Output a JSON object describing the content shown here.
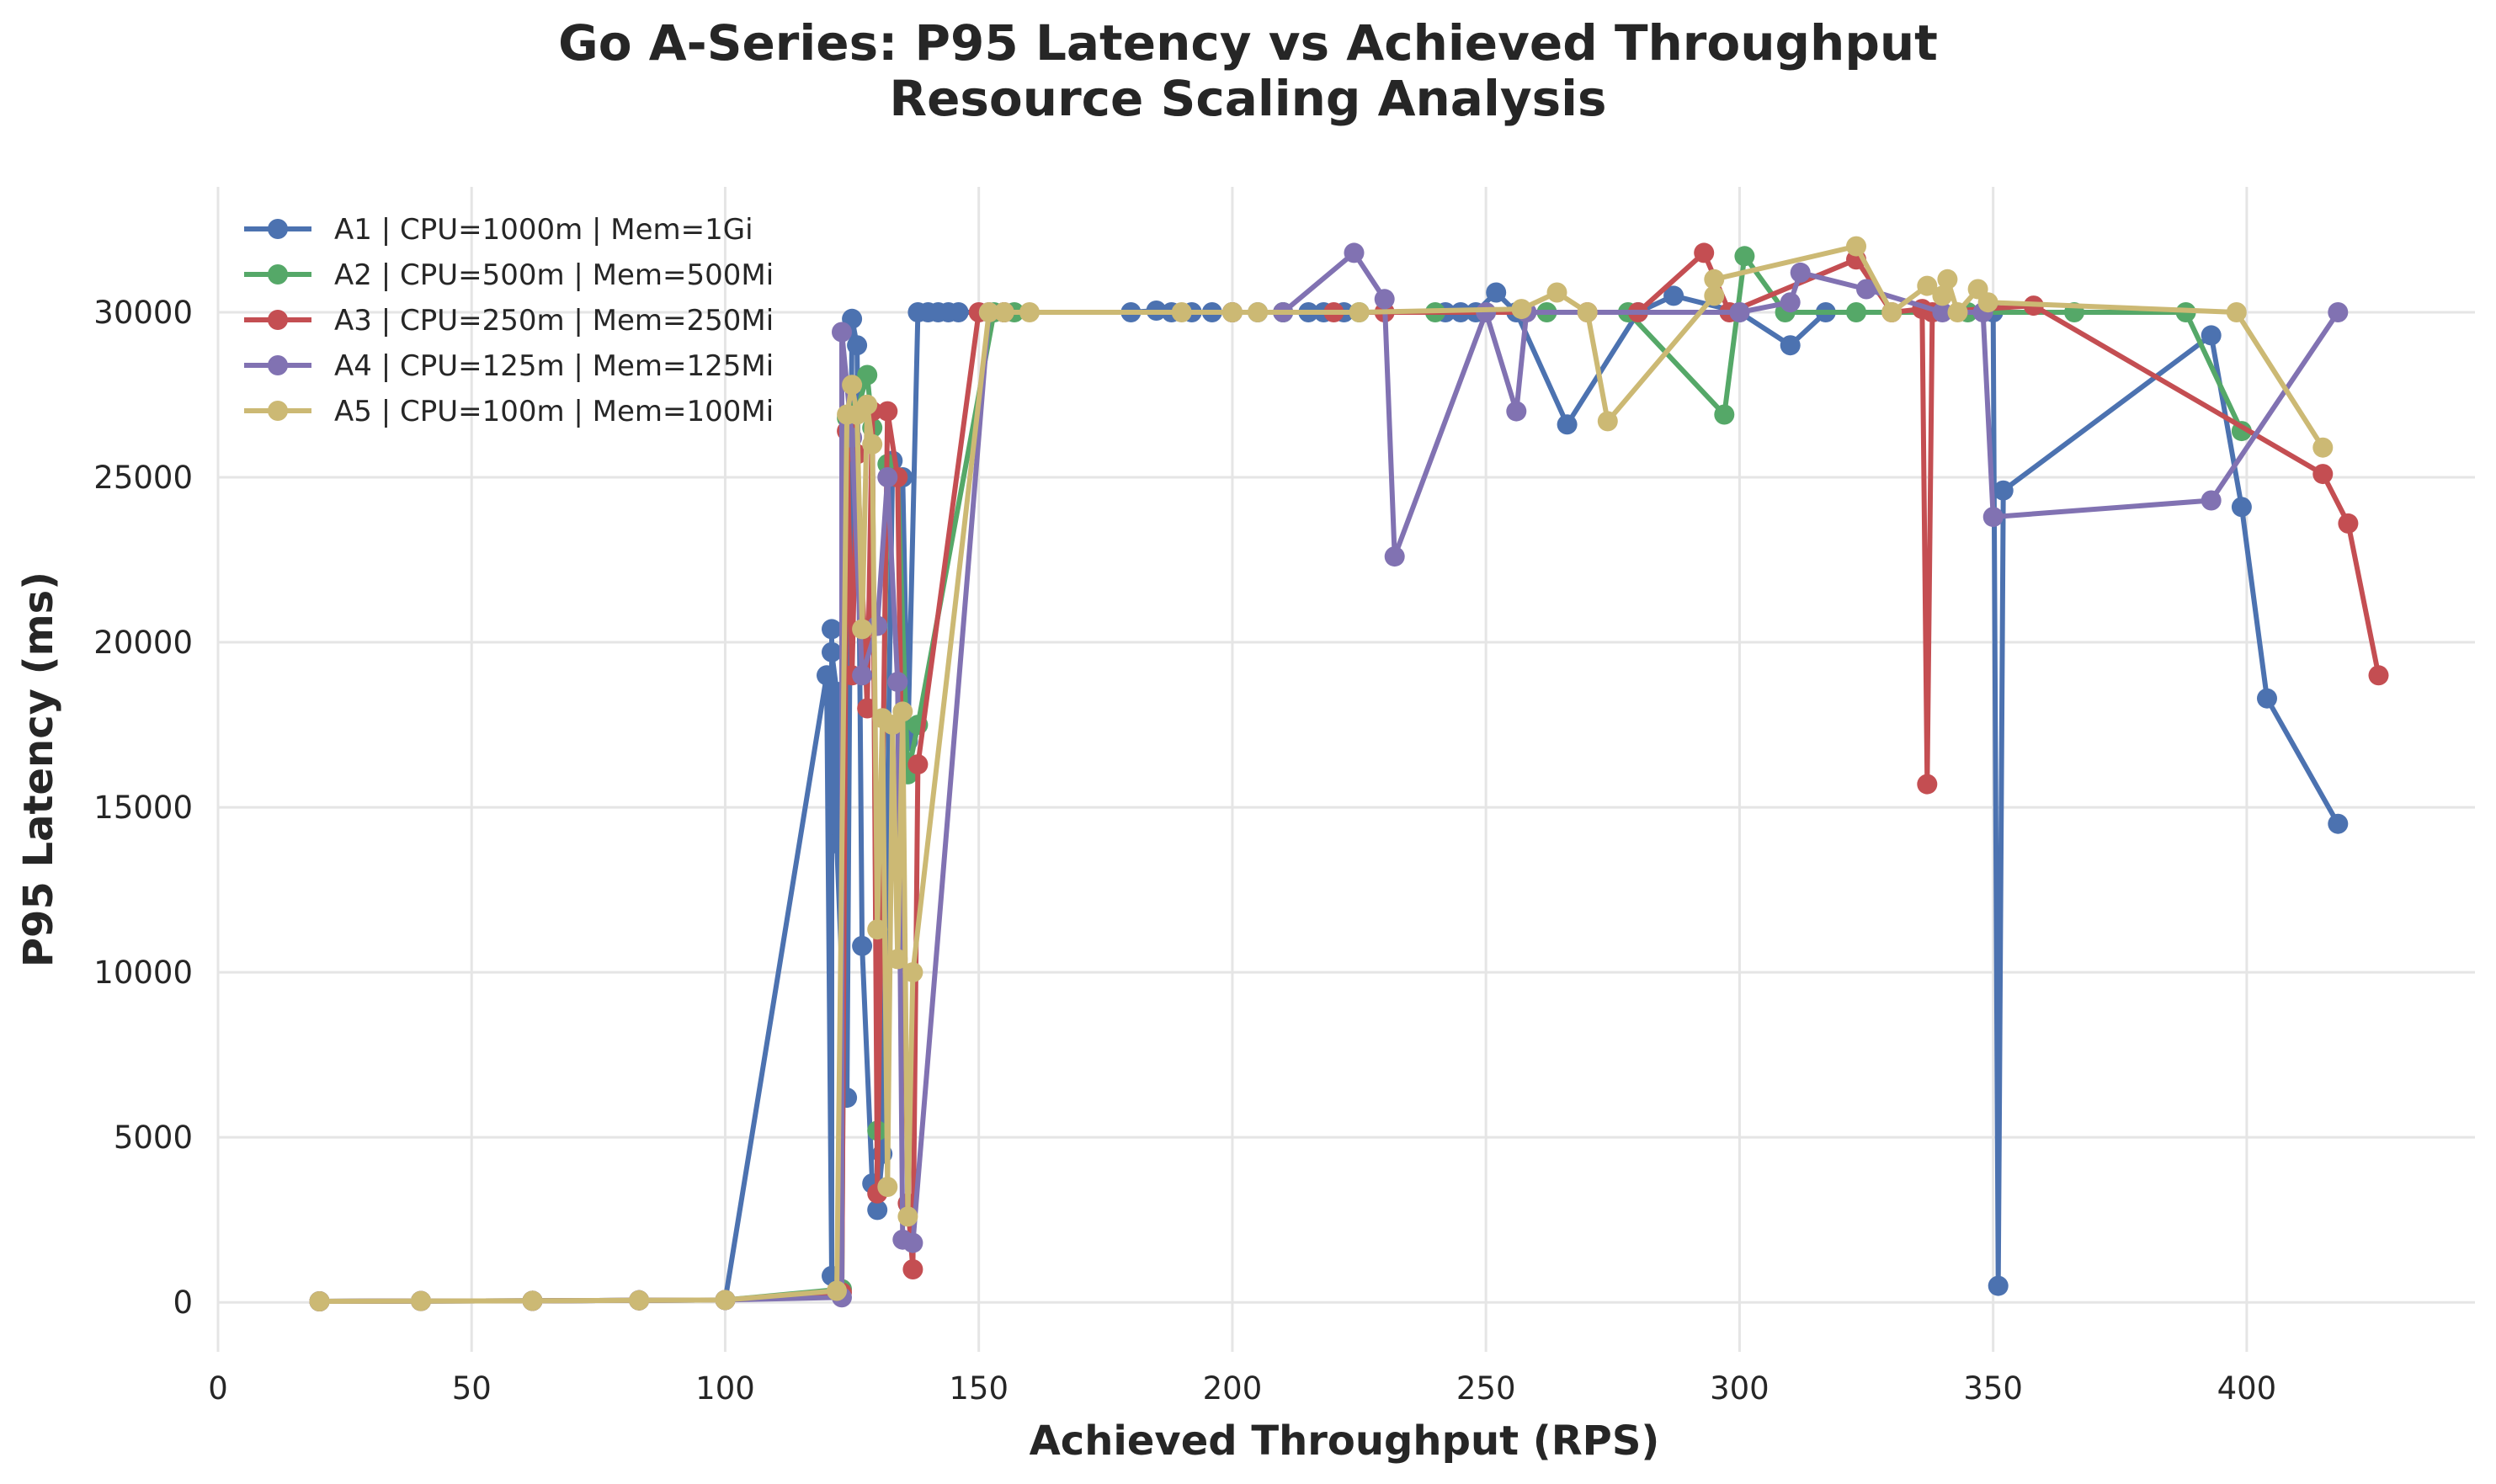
{
  "chart_data": {
    "type": "line",
    "title": "Go A-Series: P95 Latency vs Achieved Throughput",
    "subtitle": "Resource Scaling Analysis",
    "xlabel": "Achieved Throughput (RPS)",
    "ylabel": "P95 Latency (ms)",
    "xlim": [
      0,
      445
    ],
    "ylim": [
      -1500,
      33800
    ],
    "xticks": [
      0,
      50,
      100,
      150,
      200,
      250,
      300,
      350,
      400
    ],
    "yticks": [
      0,
      5000,
      10000,
      15000,
      20000,
      25000,
      30000
    ],
    "grid": true,
    "legend_position": "top-left",
    "marker": "circle",
    "series": [
      {
        "name": "A1 | CPU=1000m | Mem=1Gi",
        "color": "#4c72b0",
        "points": [
          [
            20,
            30
          ],
          [
            40,
            40
          ],
          [
            62,
            45
          ],
          [
            83,
            60
          ],
          [
            100,
            70
          ],
          [
            120,
            19000
          ],
          [
            121,
            800
          ],
          [
            121,
            20400
          ],
          [
            121,
            19700
          ],
          [
            122,
            18500
          ],
          [
            122,
            13900
          ],
          [
            124,
            6200
          ],
          [
            125,
            29800
          ],
          [
            126,
            29000
          ],
          [
            127,
            10800
          ],
          [
            129,
            3600
          ],
          [
            130,
            2800
          ],
          [
            131,
            4500
          ],
          [
            133,
            25500
          ],
          [
            135,
            25000
          ],
          [
            136,
            17000
          ],
          [
            138,
            30000
          ],
          [
            140,
            30000
          ],
          [
            142,
            30000
          ],
          [
            144,
            30000
          ],
          [
            146,
            30000
          ],
          [
            180,
            30000
          ],
          [
            185,
            30050
          ],
          [
            188,
            30000
          ],
          [
            192,
            30000
          ],
          [
            196,
            30000
          ],
          [
            200,
            30000
          ],
          [
            205,
            30000
          ],
          [
            210,
            30000
          ],
          [
            215,
            30000
          ],
          [
            218,
            30000
          ],
          [
            222,
            30000
          ],
          [
            242,
            30000
          ],
          [
            245,
            30000
          ],
          [
            248,
            30000
          ],
          [
            252,
            30600
          ],
          [
            256,
            30000
          ],
          [
            266,
            26600
          ],
          [
            280,
            30000
          ],
          [
            287,
            30500
          ],
          [
            300,
            30000
          ],
          [
            310,
            29000
          ],
          [
            317,
            30000
          ],
          [
            350,
            30000
          ],
          [
            351,
            500
          ],
          [
            352,
            24600
          ],
          [
            393,
            29300
          ],
          [
            399,
            24100
          ],
          [
            404,
            18300
          ],
          [
            418,
            14500
          ]
        ]
      },
      {
        "name": "A2 | CPU=500m | Mem=500Mi",
        "color": "#55a868",
        "points": [
          [
            20,
            30
          ],
          [
            40,
            40
          ],
          [
            62,
            45
          ],
          [
            83,
            60
          ],
          [
            100,
            70
          ],
          [
            123,
            400
          ],
          [
            124,
            26800
          ],
          [
            126,
            27000
          ],
          [
            128,
            28100
          ],
          [
            129,
            26500
          ],
          [
            130,
            5200
          ],
          [
            132,
            25400
          ],
          [
            134,
            25000
          ],
          [
            136,
            16000
          ],
          [
            138,
            17500
          ],
          [
            153,
            30000
          ],
          [
            155,
            30000
          ],
          [
            157,
            30000
          ],
          [
            200,
            30000
          ],
          [
            210,
            30000
          ],
          [
            225,
            30000
          ],
          [
            240,
            30000
          ],
          [
            262,
            30000
          ],
          [
            278,
            30000
          ],
          [
            297,
            26900
          ],
          [
            301,
            31700
          ],
          [
            309,
            30000
          ],
          [
            323,
            30000
          ],
          [
            345,
            30000
          ],
          [
            366,
            30000
          ],
          [
            388,
            30000
          ],
          [
            399,
            26400
          ]
        ]
      },
      {
        "name": "A3 | CPU=250m | Mem=250Mi",
        "color": "#c44e52",
        "points": [
          [
            20,
            30
          ],
          [
            40,
            40
          ],
          [
            62,
            45
          ],
          [
            83,
            60
          ],
          [
            100,
            70
          ],
          [
            123,
            300
          ],
          [
            124,
            26400
          ],
          [
            125,
            19000
          ],
          [
            126,
            25700
          ],
          [
            128,
            18000
          ],
          [
            129,
            27000
          ],
          [
            130,
            3300
          ],
          [
            132,
            27000
          ],
          [
            134,
            25000
          ],
          [
            136,
            3000
          ],
          [
            137,
            1000
          ],
          [
            138,
            16300
          ],
          [
            150,
            30000
          ],
          [
            155,
            30000
          ],
          [
            200,
            30000
          ],
          [
            220,
            30000
          ],
          [
            230,
            30000
          ],
          [
            270,
            30000
          ],
          [
            280,
            30000
          ],
          [
            293,
            31800
          ],
          [
            298,
            30000
          ],
          [
            323,
            31600
          ],
          [
            330,
            30000
          ],
          [
            336,
            30100
          ],
          [
            337,
            15700
          ],
          [
            338,
            30000
          ],
          [
            358,
            30200
          ],
          [
            415,
            25100
          ],
          [
            420,
            23600
          ],
          [
            426,
            19000
          ]
        ]
      },
      {
        "name": "A4 | CPU=125m | Mem=125Mi",
        "color": "#8172b2",
        "points": [
          [
            20,
            30
          ],
          [
            40,
            40
          ],
          [
            62,
            45
          ],
          [
            83,
            60
          ],
          [
            100,
            70
          ],
          [
            123,
            150
          ],
          [
            123,
            29400
          ],
          [
            125,
            26200
          ],
          [
            127,
            19000
          ],
          [
            130,
            20500
          ],
          [
            132,
            25000
          ],
          [
            134,
            18800
          ],
          [
            135,
            1900
          ],
          [
            137,
            1800
          ],
          [
            152,
            30000
          ],
          [
            210,
            30000
          ],
          [
            224,
            31800
          ],
          [
            230,
            30400
          ],
          [
            232,
            22600
          ],
          [
            250,
            30000
          ],
          [
            256,
            27000
          ],
          [
            258,
            30000
          ],
          [
            300,
            30000
          ],
          [
            310,
            30300
          ],
          [
            312,
            31200
          ],
          [
            325,
            30700
          ],
          [
            340,
            30000
          ],
          [
            348,
            30000
          ],
          [
            350,
            23800
          ],
          [
            393,
            24300
          ],
          [
            418,
            30000
          ]
        ]
      },
      {
        "name": "A5 | CPU=100m | Mem=100Mi",
        "color": "#ccb974",
        "points": [
          [
            20,
            30
          ],
          [
            40,
            40
          ],
          [
            62,
            45
          ],
          [
            83,
            60
          ],
          [
            100,
            70
          ],
          [
            122,
            350
          ],
          [
            124,
            26900
          ],
          [
            125,
            27800
          ],
          [
            126,
            26900
          ],
          [
            127,
            20400
          ],
          [
            128,
            27200
          ],
          [
            129,
            26000
          ],
          [
            130,
            11300
          ],
          [
            131,
            17700
          ],
          [
            132,
            3500
          ],
          [
            133,
            17500
          ],
          [
            134,
            10400
          ],
          [
            135,
            17900
          ],
          [
            136,
            2600
          ],
          [
            137,
            10000
          ],
          [
            152,
            30000
          ],
          [
            155,
            30000
          ],
          [
            160,
            30000
          ],
          [
            190,
            30000
          ],
          [
            200,
            30000
          ],
          [
            205,
            30000
          ],
          [
            225,
            30000
          ],
          [
            257,
            30100
          ],
          [
            264,
            30600
          ],
          [
            270,
            30000
          ],
          [
            274,
            26700
          ],
          [
            295,
            30500
          ],
          [
            295,
            31000
          ],
          [
            323,
            32000
          ],
          [
            330,
            30000
          ],
          [
            337,
            30800
          ],
          [
            340,
            30500
          ],
          [
            341,
            31000
          ],
          [
            343,
            30000
          ],
          [
            347,
            30700
          ],
          [
            349,
            30300
          ],
          [
            398,
            30000
          ],
          [
            415,
            25900
          ]
        ]
      }
    ]
  }
}
